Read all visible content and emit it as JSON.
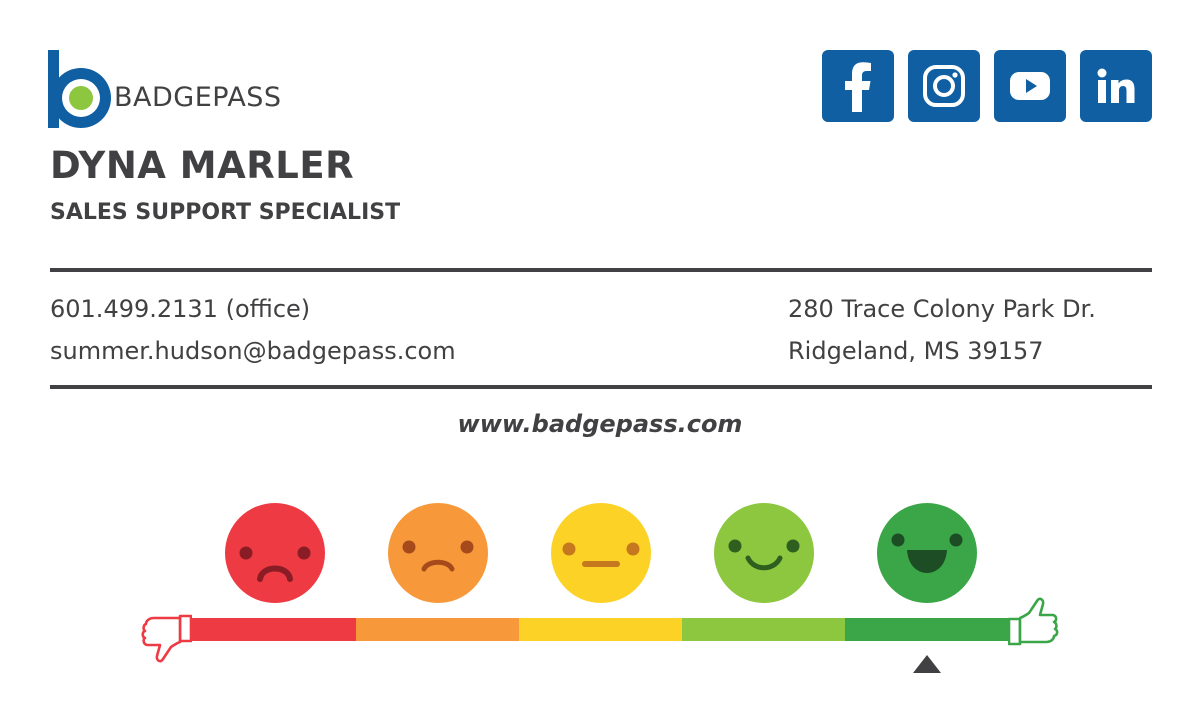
{
  "brand": {
    "name": "BADGEPASS",
    "colors": {
      "blue": "#0f5fa2",
      "green": "#8dc63f",
      "text": "#414042"
    }
  },
  "social": [
    {
      "icon": "facebook-icon",
      "label": "Facebook"
    },
    {
      "icon": "instagram-icon",
      "label": "Instagram"
    },
    {
      "icon": "youtube-icon",
      "label": "YouTube"
    },
    {
      "icon": "linkedin-icon",
      "label": "LinkedIn"
    }
  ],
  "person": {
    "name": "DYNA MARLER",
    "title": "SALES SUPPORT SPECIALIST"
  },
  "contact": {
    "phone": "601.499.2131 (office)",
    "email": "summer.hudson@badgepass.com",
    "street": "280 Trace Colony Park Dr.",
    "city": "Ridgeland, MS 39157"
  },
  "website": "www.badgepass.com",
  "rating": {
    "levels": [
      {
        "icon": "very-sad-face-icon",
        "color": "#ee3a43"
      },
      {
        "icon": "sad-face-icon",
        "color": "#f7993a"
      },
      {
        "icon": "neutral-face-icon",
        "color": "#fcd226"
      },
      {
        "icon": "happy-face-icon",
        "color": "#8dc63f"
      },
      {
        "icon": "very-happy-face-icon",
        "color": "#3aa648"
      }
    ],
    "selected_level": 5,
    "selected_of": 5
  }
}
